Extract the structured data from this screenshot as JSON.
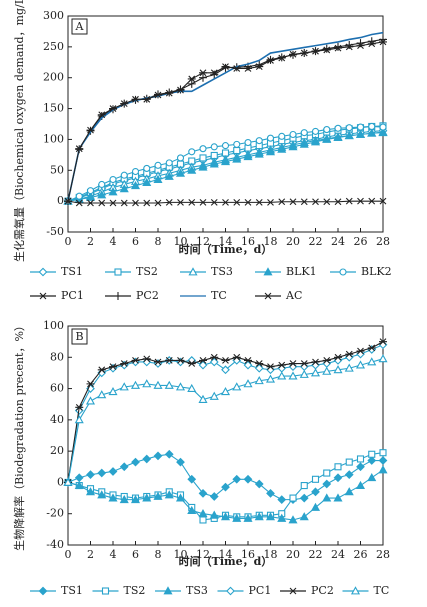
{
  "chart_data": [
    {
      "type": "line",
      "label": "A",
      "ylabel": "生化需氧量（Biochemical oxygen demand，mg/L）",
      "xlabel": "时间（Time，d）",
      "x": [
        0,
        1,
        2,
        3,
        4,
        5,
        6,
        7,
        8,
        9,
        10,
        11,
        12,
        13,
        14,
        15,
        16,
        17,
        18,
        19,
        20,
        21,
        22,
        23,
        24,
        25,
        26,
        27,
        28
      ],
      "xlim": [
        0,
        28
      ],
      "xticks": [
        0,
        2,
        4,
        6,
        8,
        10,
        12,
        14,
        16,
        18,
        20,
        22,
        24,
        26,
        28
      ],
      "ylim": [
        -50,
        300
      ],
      "yticks": [
        -50,
        0,
        50,
        100,
        150,
        200,
        250,
        300
      ],
      "legend_columns": 5,
      "series": [
        {
          "name": "TS1",
          "color": "#2aa3cc",
          "marker": "diamond-open",
          "values": [
            0,
            5,
            12,
            20,
            28,
            33,
            38,
            42,
            48,
            52,
            57,
            62,
            66,
            70,
            75,
            78,
            82,
            85,
            88,
            92,
            95,
            98,
            100,
            104,
            107,
            109,
            111,
            113,
            114
          ]
        },
        {
          "name": "TS2",
          "color": "#2aa3cc",
          "marker": "square-open",
          "values": [
            0,
            6,
            14,
            22,
            30,
            36,
            40,
            45,
            50,
            55,
            60,
            65,
            70,
            74,
            78,
            82,
            86,
            90,
            94,
            98,
            102,
            106,
            108,
            112,
            115,
            117,
            119,
            121,
            122
          ]
        },
        {
          "name": "TS3",
          "color": "#2aa3cc",
          "marker": "triangle-open",
          "values": [
            0,
            3,
            8,
            15,
            22,
            27,
            32,
            36,
            41,
            45,
            50,
            55,
            58,
            63,
            67,
            71,
            75,
            79,
            83,
            87,
            91,
            95,
            98,
            101,
            104,
            106,
            108,
            110,
            111
          ]
        },
        {
          "name": "BLK1",
          "color": "#2aa3cc",
          "marker": "triangle",
          "values": [
            0,
            3,
            6,
            10,
            15,
            20,
            25,
            30,
            35,
            40,
            45,
            50,
            55,
            60,
            64,
            68,
            72,
            76,
            80,
            84,
            88,
            92,
            96,
            100,
            103,
            106,
            108,
            110,
            112
          ]
        },
        {
          "name": "BLK2",
          "color": "#2aa3cc",
          "marker": "circle-open",
          "values": [
            0,
            8,
            17,
            27,
            35,
            42,
            48,
            53,
            58,
            62,
            70,
            80,
            85,
            88,
            90,
            92,
            95,
            98,
            102,
            105,
            108,
            111,
            113,
            116,
            118,
            119,
            120,
            121,
            120
          ]
        },
        {
          "name": "PC1",
          "color": "#222222",
          "marker": "x",
          "values": [
            0,
            -3,
            -3,
            -3,
            -3,
            -3,
            -3,
            -3,
            -3,
            -2,
            -2,
            -2,
            -2,
            -2,
            -2,
            -2,
            -2,
            -2,
            -2,
            -1,
            -1,
            -1,
            -1,
            -1,
            -1,
            0,
            0,
            0,
            0
          ]
        },
        {
          "name": "PC2",
          "color": "#222222",
          "marker": "plus",
          "values": [
            0,
            84,
            114,
            138,
            149,
            158,
            164,
            166,
            173,
            176,
            181,
            190,
            200,
            205,
            216,
            217,
            218,
            221,
            229,
            233,
            237,
            240,
            243,
            247,
            250,
            253,
            256,
            259,
            262
          ]
        },
        {
          "name": "TC",
          "color": "#1d6fb0",
          "marker": "none",
          "values": [
            0,
            85,
            112,
            135,
            148,
            157,
            163,
            167,
            170,
            175,
            178,
            178,
            188,
            198,
            208,
            218,
            222,
            228,
            240,
            243,
            246,
            249,
            252,
            255,
            258,
            262,
            265,
            270,
            273
          ]
        },
        {
          "name": "AC",
          "color": "#222222",
          "marker": "asterisk",
          "values": [
            0,
            85,
            115,
            140,
            150,
            158,
            165,
            165,
            172,
            175,
            180,
            198,
            208,
            208,
            218,
            215,
            215,
            218,
            228,
            232,
            238,
            240,
            243,
            245,
            248,
            250,
            252,
            255,
            258
          ]
        }
      ]
    },
    {
      "type": "line",
      "label": "B",
      "ylabel": "生物降解率（Biodegradation precent，%）",
      "xlabel": "时间（Time，d）",
      "x": [
        0,
        1,
        2,
        3,
        4,
        5,
        6,
        7,
        8,
        9,
        10,
        11,
        12,
        13,
        14,
        15,
        16,
        17,
        18,
        19,
        20,
        21,
        22,
        23,
        24,
        25,
        26,
        27,
        28
      ],
      "xlim": [
        0,
        28
      ],
      "xticks": [
        0,
        2,
        4,
        6,
        8,
        10,
        12,
        14,
        16,
        18,
        20,
        22,
        24,
        26,
        28
      ],
      "ylim": [
        -40,
        100
      ],
      "yticks": [
        -40,
        -20,
        0,
        20,
        40,
        60,
        80,
        100
      ],
      "legend_columns": 6,
      "series": [
        {
          "name": "TS1",
          "color": "#2aa3cc",
          "marker": "diamond",
          "values": [
            0,
            3,
            5,
            6,
            7,
            10,
            13,
            15,
            17,
            18,
            13,
            2,
            -7,
            -9,
            -3,
            2,
            2,
            -1,
            -7,
            -11,
            -11,
            -10,
            -6,
            -1,
            3,
            5,
            10,
            14,
            14
          ]
        },
        {
          "name": "TS2",
          "color": "#2aa3cc",
          "marker": "square-open",
          "values": [
            0,
            -2,
            -4,
            -6,
            -8,
            -9,
            -10,
            -9,
            -8,
            -6,
            -8,
            -16,
            -24,
            -23,
            -21,
            -22,
            -22,
            -21,
            -21,
            -20,
            -10,
            -2,
            2,
            6,
            10,
            13,
            15,
            18,
            19
          ]
        },
        {
          "name": "TS3",
          "color": "#2aa3cc",
          "marker": "triangle",
          "values": [
            0,
            -2,
            -6,
            -8,
            -10,
            -11,
            -11,
            -10,
            -9,
            -8,
            -10,
            -18,
            -20,
            -21,
            -22,
            -23,
            -23,
            -22,
            -22,
            -23,
            -24,
            -22,
            -16,
            -10,
            -10,
            -6,
            -2,
            3,
            8
          ]
        },
        {
          "name": "PC1",
          "color": "#2aa3cc",
          "marker": "diamond-open",
          "values": [
            0,
            46,
            60,
            70,
            73,
            75,
            77,
            77,
            76,
            78,
            77,
            78,
            75,
            77,
            72,
            78,
            75,
            73,
            72,
            73,
            74,
            74,
            75,
            76,
            78,
            80,
            82,
            85,
            88
          ]
        },
        {
          "name": "PC2",
          "color": "#222222",
          "marker": "asterisk",
          "values": [
            0,
            48,
            63,
            72,
            74,
            76,
            78,
            79,
            77,
            78,
            78,
            76,
            78,
            80,
            78,
            80,
            78,
            76,
            74,
            75,
            76,
            76,
            77,
            78,
            80,
            82,
            84,
            86,
            90
          ]
        },
        {
          "name": "TC",
          "color": "#2aa3cc",
          "marker": "triangle-open",
          "values": [
            0,
            40,
            52,
            56,
            58,
            61,
            62,
            63,
            62,
            62,
            61,
            60,
            53,
            55,
            58,
            61,
            63,
            65,
            66,
            68,
            68,
            69,
            70,
            71,
            72,
            73,
            75,
            77,
            79
          ]
        }
      ]
    }
  ]
}
